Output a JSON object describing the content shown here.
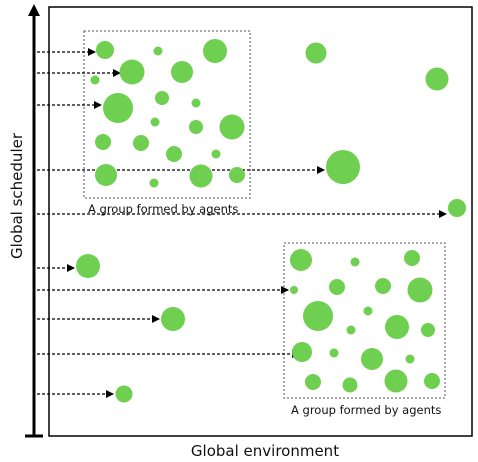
{
  "x_axis_label": "Global environment",
  "y_axis_label": "Global scheduler",
  "groups": [
    {
      "label": "A group formed by agents"
    },
    {
      "label": "A group formed by agents"
    }
  ],
  "colors": {
    "agent": "#6ecf50",
    "frame": "#000000",
    "arrow": "#000000",
    "group_border": "#555555"
  },
  "agent_count": 46,
  "scheduler_arrow_count": 11
}
